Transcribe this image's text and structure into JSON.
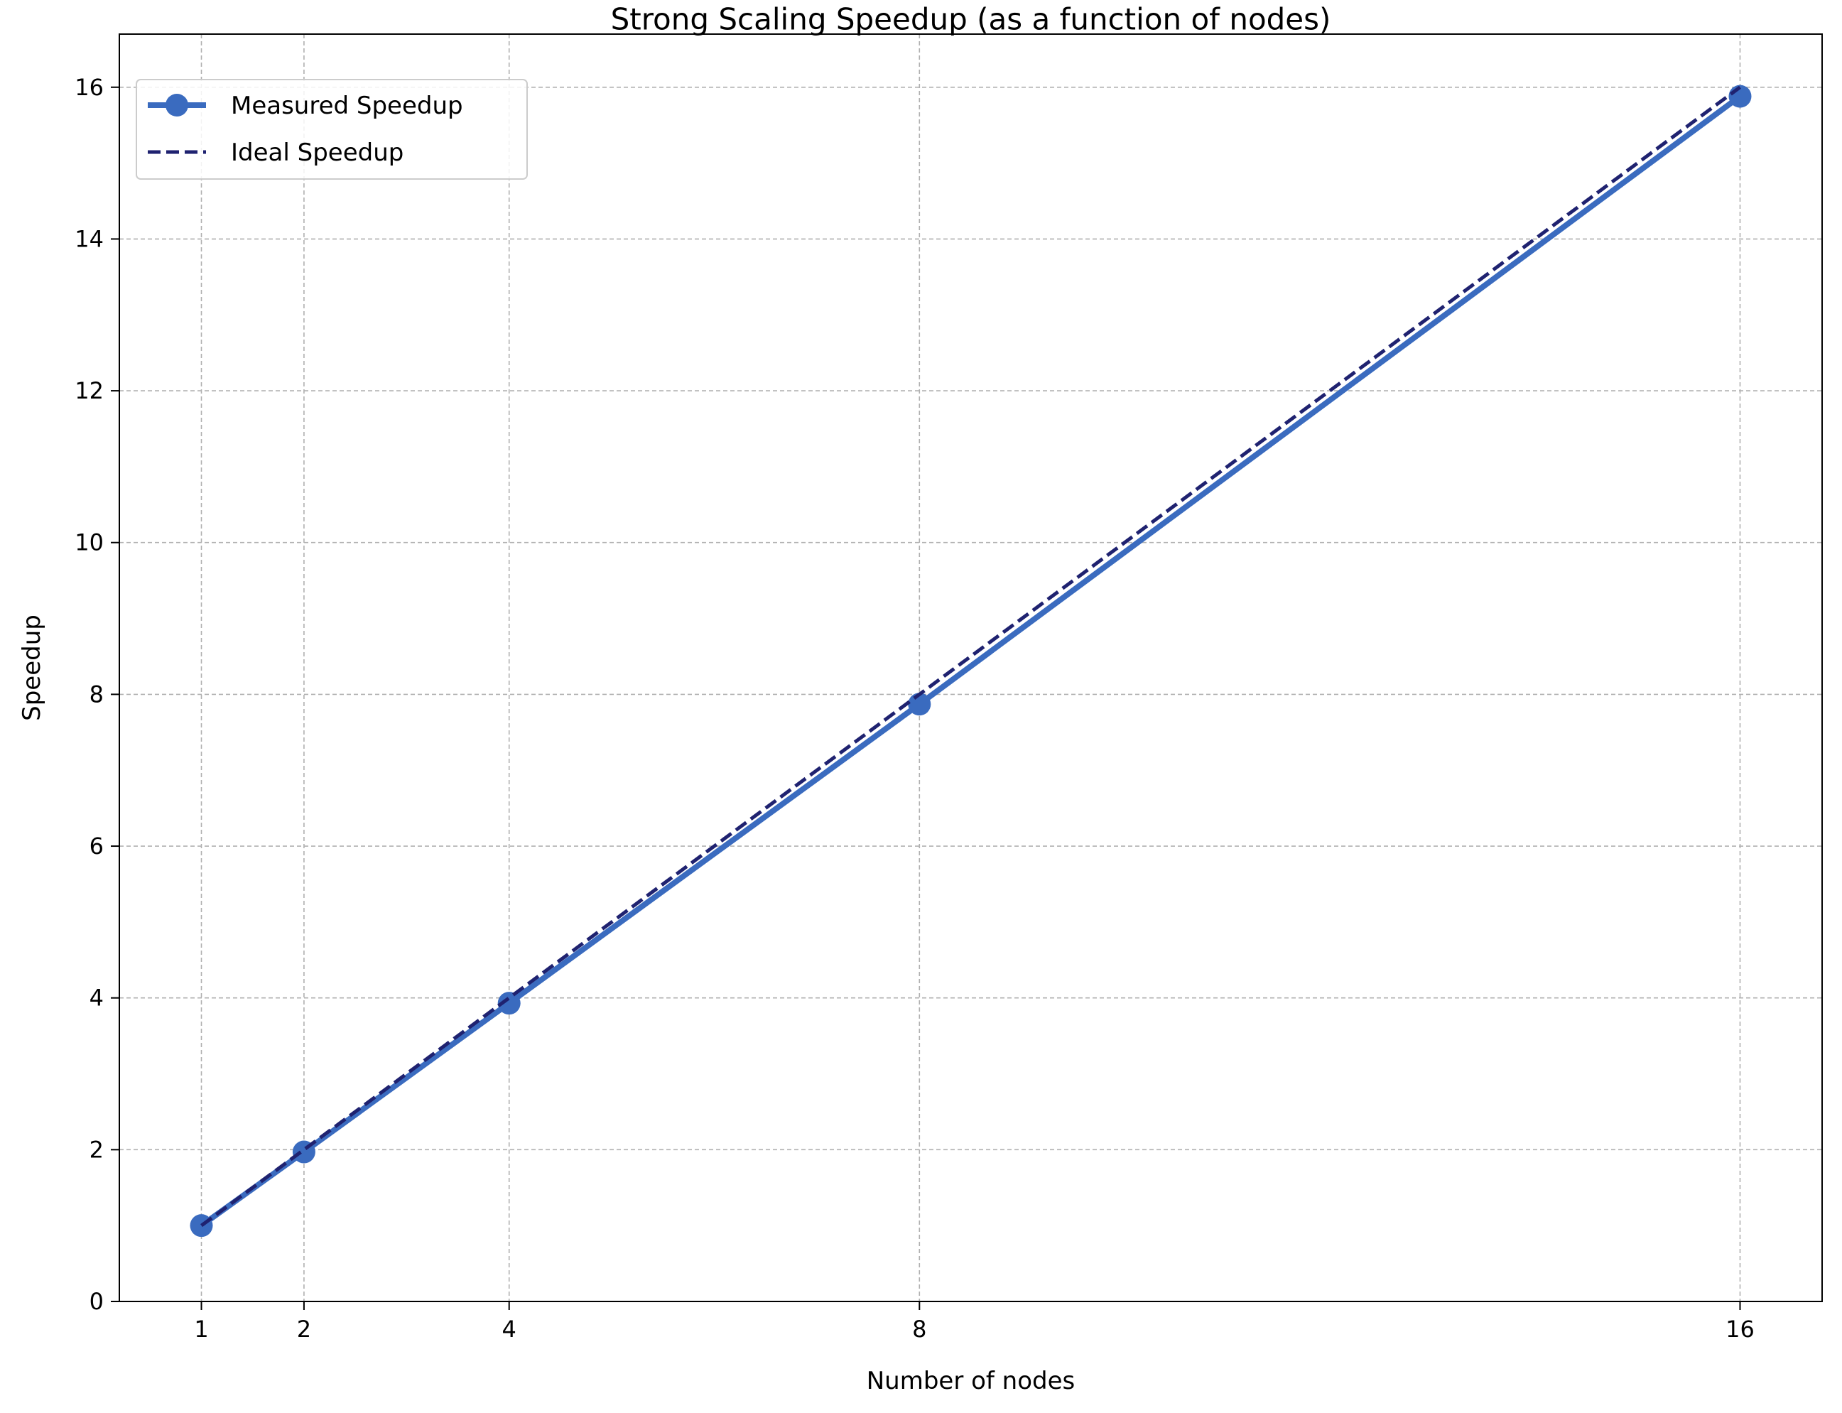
{
  "chart_data": {
    "type": "line",
    "title": "Strong Scaling Speedup (as a function of nodes)",
    "xlabel": "Number of nodes",
    "ylabel": "Speedup",
    "x": [
      1,
      2,
      4,
      8,
      16
    ],
    "xticks": [
      "1",
      "2",
      "4",
      "8",
      "16"
    ],
    "yticks": [
      "0",
      "2",
      "4",
      "6",
      "8",
      "10",
      "12",
      "14",
      "16"
    ],
    "xlim": [
      0.2,
      16.8
    ],
    "ylim": [
      0,
      16.7
    ],
    "grid": true,
    "legend_position": "top-left",
    "series": [
      {
        "name": "Measured Speedup",
        "values": [
          1.0,
          1.97,
          3.93,
          7.87,
          15.88
        ],
        "color": "#3a6bbf",
        "style": "solid",
        "marker": "circle"
      },
      {
        "name": "Ideal Speedup",
        "values": [
          1,
          2,
          4,
          8,
          16
        ],
        "color": "#1f2270",
        "style": "dashed",
        "marker": "none"
      }
    ]
  }
}
